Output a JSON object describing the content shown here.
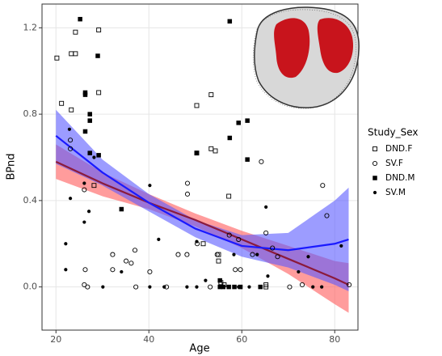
{
  "chart_data": {
    "type": "scatter",
    "x_label": "Age",
    "y_label": "BPnd",
    "legend_title": "Study_Sex",
    "xlim": [
      17,
      85
    ],
    "ylim": [
      -0.2,
      1.31
    ],
    "xticks": [
      20,
      40,
      60,
      80
    ],
    "yticks": [
      {
        "value": 0,
        "label": "0.0"
      },
      {
        "value": 0.4,
        "label": "0.4"
      },
      {
        "value": 0.8,
        "label": "0.8"
      },
      {
        "value": 1.2,
        "label": "1.2"
      }
    ],
    "grid": true,
    "series": [
      {
        "name": "DND.F",
        "marker": "square-open",
        "color": "#000000",
        "x": [
          20.2,
          21.2,
          23.3,
          24.2,
          24.2,
          23.3,
          29.2,
          29.2,
          28.2,
          50.3,
          53.4,
          50.3,
          53.4,
          54.3,
          57.2,
          55,
          55.5,
          56.2,
          65.2,
          65.2,
          51.7,
          55
        ],
        "y": [
          1.06,
          0.85,
          1.08,
          1.18,
          1.08,
          0.82,
          1.19,
          0.9,
          0.47,
          0.84,
          0.89,
          0.62,
          0.64,
          0.63,
          0.42,
          0.12,
          0.02,
          0.01,
          0.01,
          0,
          0.2,
          0.15
        ]
      },
      {
        "name": "SV.F",
        "marker": "circle-open",
        "color": "#000000",
        "x": [
          23.1,
          23.1,
          26.1,
          26.3,
          26.1,
          26.8,
          37,
          35.1,
          32.2,
          32.2,
          36.2,
          40.2,
          37.2,
          43.8,
          48.3,
          48.3,
          46.3,
          48.2,
          50.4,
          53.2,
          54.7,
          57.3,
          58.6,
          59.3,
          59.7,
          62.3,
          64.2,
          65.2,
          66.6,
          67.7,
          70.3,
          73,
          77.4,
          78.3,
          83.1
        ],
        "y": [
          0.68,
          0.64,
          0.45,
          0.08,
          0.01,
          0,
          0.17,
          0.12,
          0.15,
          0.08,
          0.11,
          0.07,
          0,
          0,
          0.43,
          0.48,
          0.15,
          0.15,
          0.2,
          0,
          0.15,
          0.24,
          0.08,
          0.22,
          0.08,
          0.15,
          0.58,
          0.25,
          0.18,
          0.14,
          0,
          0.01,
          0.47,
          0.33,
          0.01
        ]
      },
      {
        "name": "DND.M",
        "marker": "square",
        "color": "#000000",
        "x": [
          25.2,
          29,
          26.3,
          26.3,
          27.3,
          27.3,
          26.3,
          27.3,
          29.2,
          50.3,
          57.4,
          57.4,
          59.3,
          61.2,
          61.2,
          34.1,
          55.3,
          56,
          57.2,
          58.4,
          59.7,
          64,
          55.3
        ],
        "y": [
          1.24,
          1.07,
          0.9,
          0.89,
          0.8,
          0.77,
          0.72,
          0.62,
          0.61,
          0.62,
          1.23,
          0.69,
          0.76,
          0.77,
          0.59,
          0.36,
          0.03,
          0,
          0,
          0,
          0,
          0,
          0
        ]
      },
      {
        "name": "SV.M",
        "marker": "circle",
        "color": "#000000",
        "x": [
          22.9,
          23.1,
          22.1,
          22.1,
          26.1,
          27.1,
          28.2,
          26.1,
          30.1,
          34.1,
          40.2,
          42.1,
          40.2,
          43.3,
          48.2,
          50.3,
          50.3,
          52.2,
          58.3,
          59.3,
          61.6,
          63.3,
          65.2,
          65.6,
          72.2,
          74.3,
          75.3,
          77.2,
          81.4
        ],
        "y": [
          0.73,
          0.41,
          0.2,
          0.08,
          0.3,
          0.35,
          0.6,
          0.48,
          0,
          0.07,
          0.47,
          0.22,
          0,
          0,
          0,
          0,
          0.21,
          0.03,
          0.15,
          0,
          0,
          0.15,
          0.37,
          0.05,
          0.07,
          0.14,
          0,
          0,
          0.19
        ]
      }
    ],
    "fits": [
      {
        "color": "#8b1a3b",
        "fill": "#ff5a5a",
        "x": [
          20,
          30,
          40,
          50,
          60,
          70,
          80,
          83
        ],
        "y": [
          0.58,
          0.48,
          0.39,
          0.31,
          0.22,
          0.13,
          0.04,
          0.01
        ],
        "lower": [
          0.5,
          0.42,
          0.36,
          0.28,
          0.18,
          0.06,
          -0.08,
          -0.12
        ],
        "upper": [
          0.66,
          0.53,
          0.43,
          0.34,
          0.26,
          0.19,
          0.12,
          0.11
        ]
      },
      {
        "color": "#1a1aff",
        "fill": "#5a5aff",
        "x": [
          20,
          30,
          40,
          50,
          60,
          70,
          80,
          83
        ],
        "y": [
          0.7,
          0.53,
          0.39,
          0.27,
          0.19,
          0.17,
          0.2,
          0.22
        ],
        "lower": [
          0.57,
          0.47,
          0.35,
          0.23,
          0.14,
          0.09,
          0.01,
          -0.02
        ],
        "upper": [
          0.82,
          0.59,
          0.43,
          0.31,
          0.24,
          0.25,
          0.4,
          0.46
        ]
      }
    ]
  }
}
